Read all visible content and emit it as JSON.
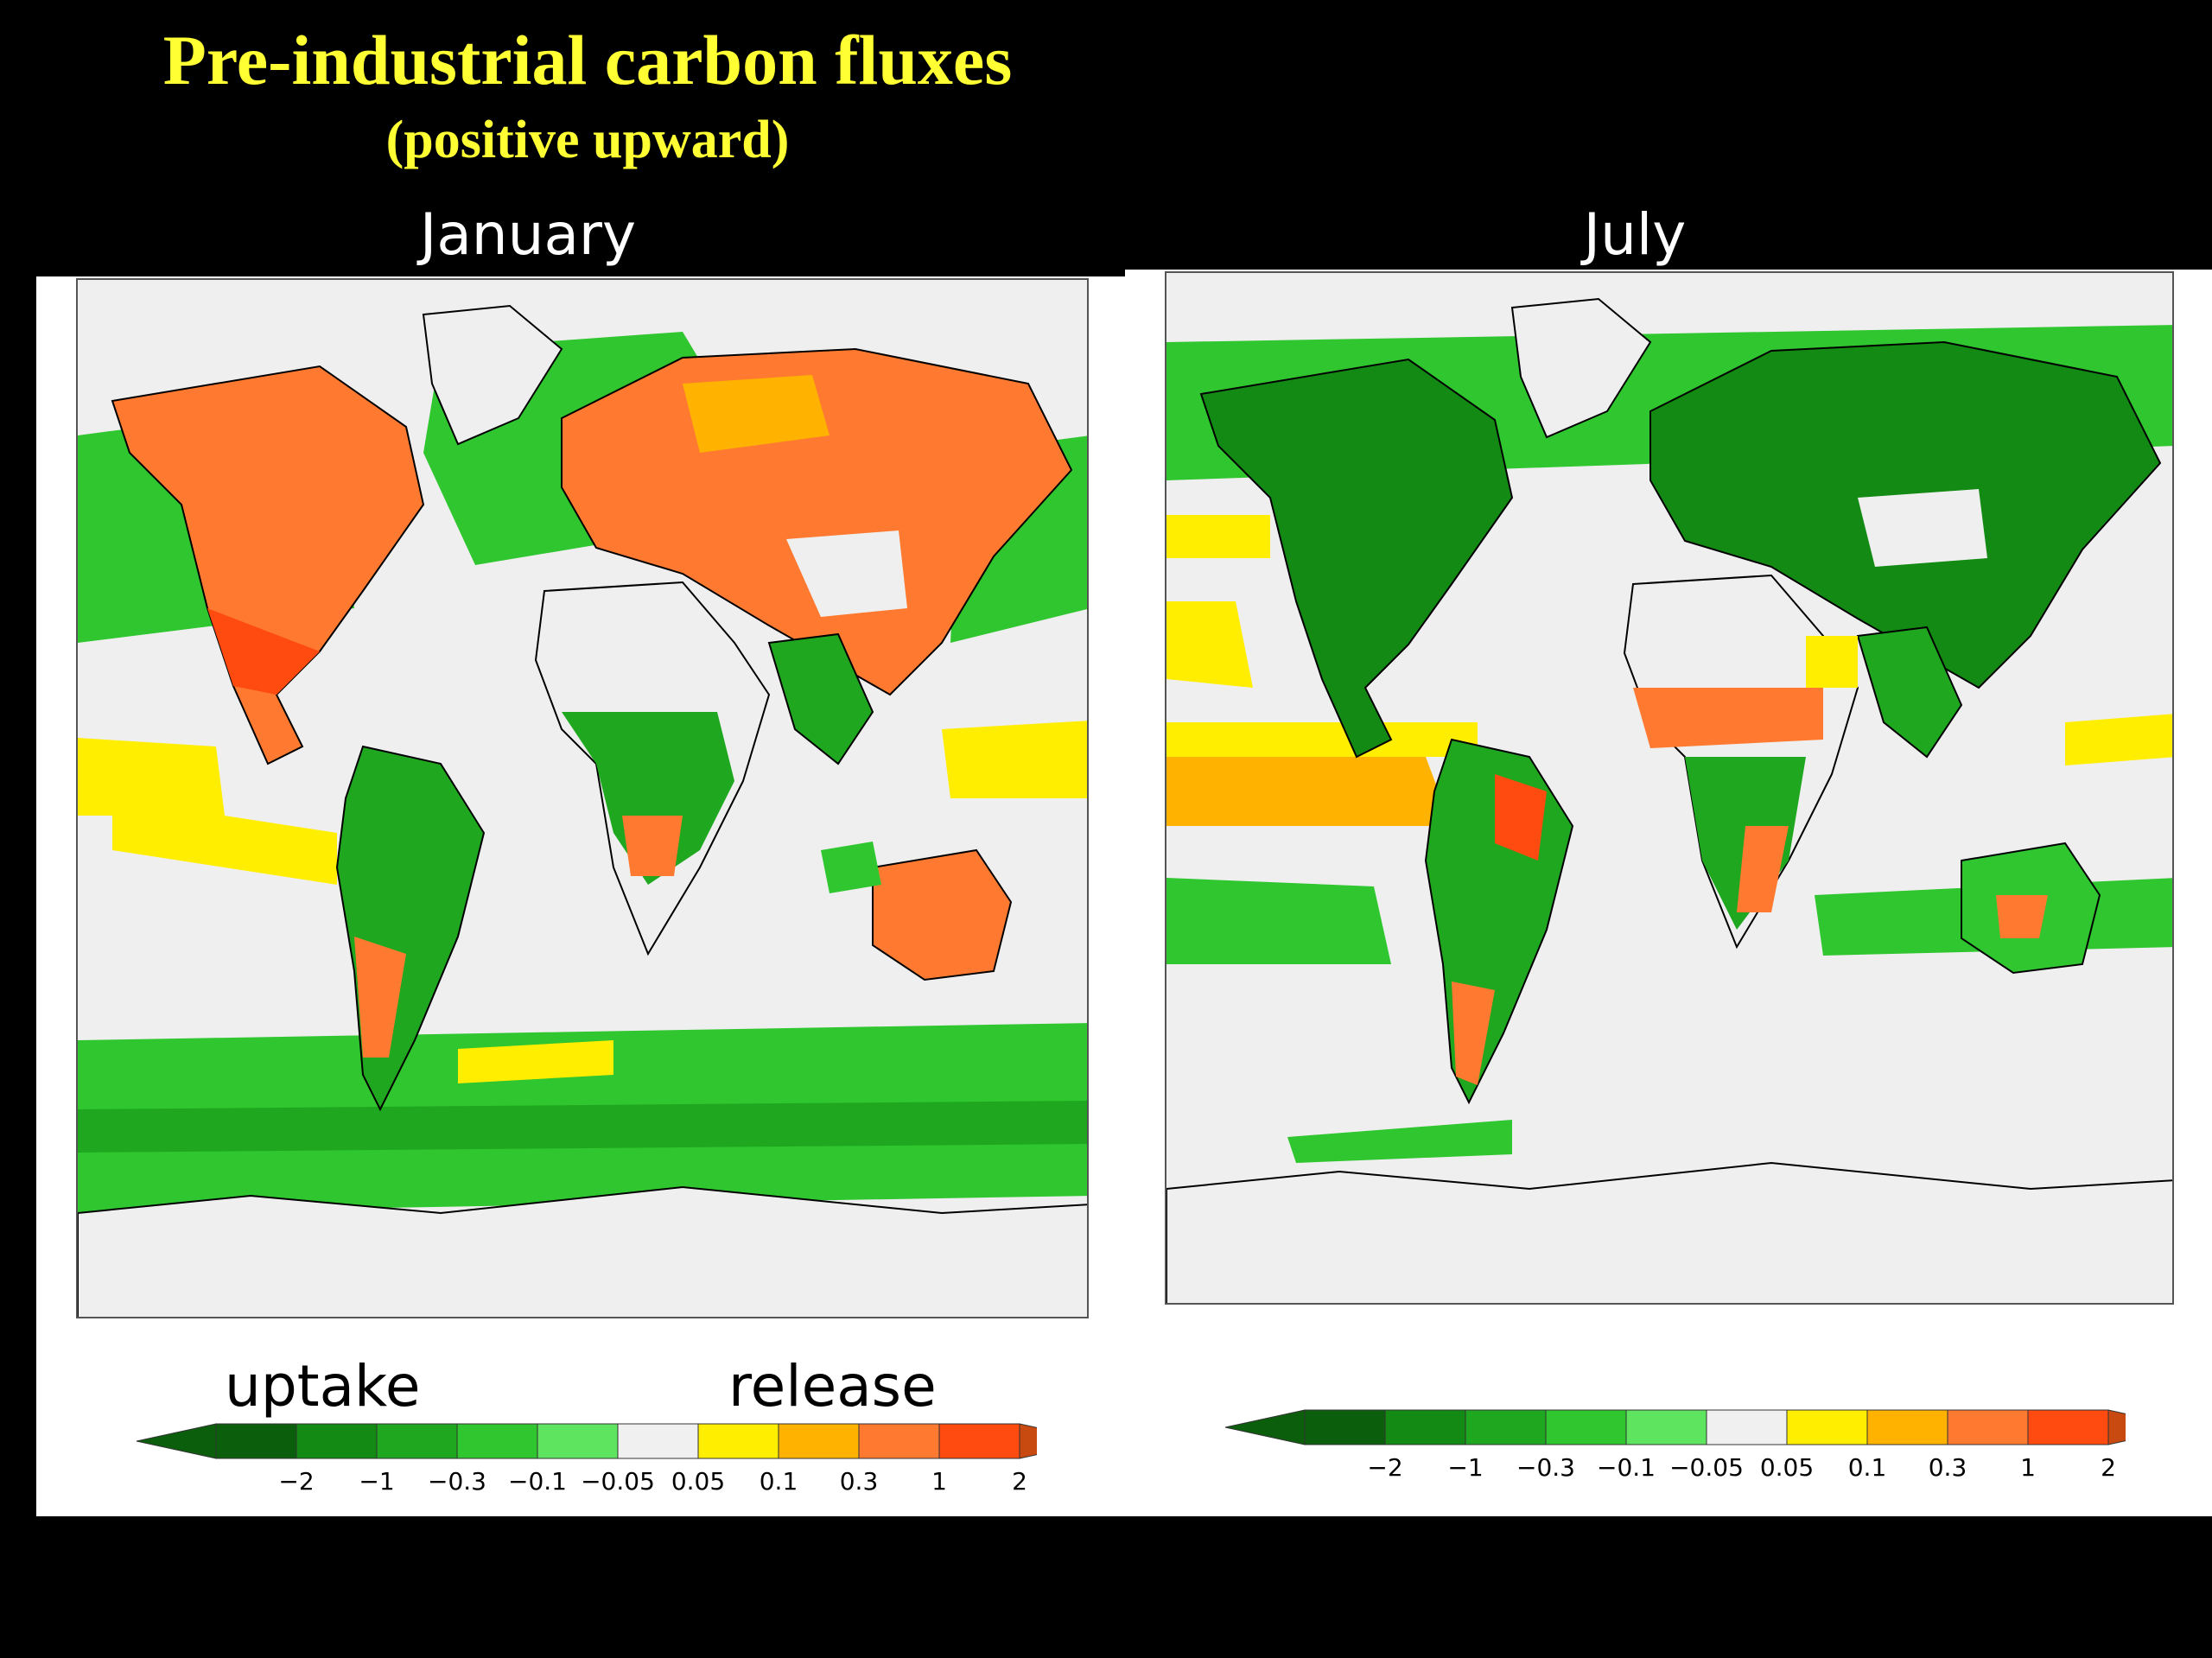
{
  "header": {
    "title": "Pre-industrial carbon fluxes",
    "subtitle": "(positive upward)"
  },
  "panels": [
    {
      "month": "January"
    },
    {
      "month": "July"
    }
  ],
  "legend": {
    "uptake_label": "uptake",
    "release_label": "release",
    "tick_labels": [
      "−2",
      "−1",
      "−0.3",
      "−0.1",
      "−0.05",
      "0.05",
      "0.1",
      "0.3",
      "1",
      "2"
    ],
    "colors": [
      "#0b5e0b",
      "#138a13",
      "#1fa81f",
      "#2fc62f",
      "#5ee45e",
      "#f0f0f0",
      "#ffee00",
      "#ffb300",
      "#ff7a30",
      "#ff4a10"
    ],
    "low_arrow_color": "#0b5e0b",
    "high_arrow_color": "#c84a10"
  },
  "map_colors": {
    "ocean": "#efefef",
    "land": "#efefef",
    "coast": "#000000"
  }
}
